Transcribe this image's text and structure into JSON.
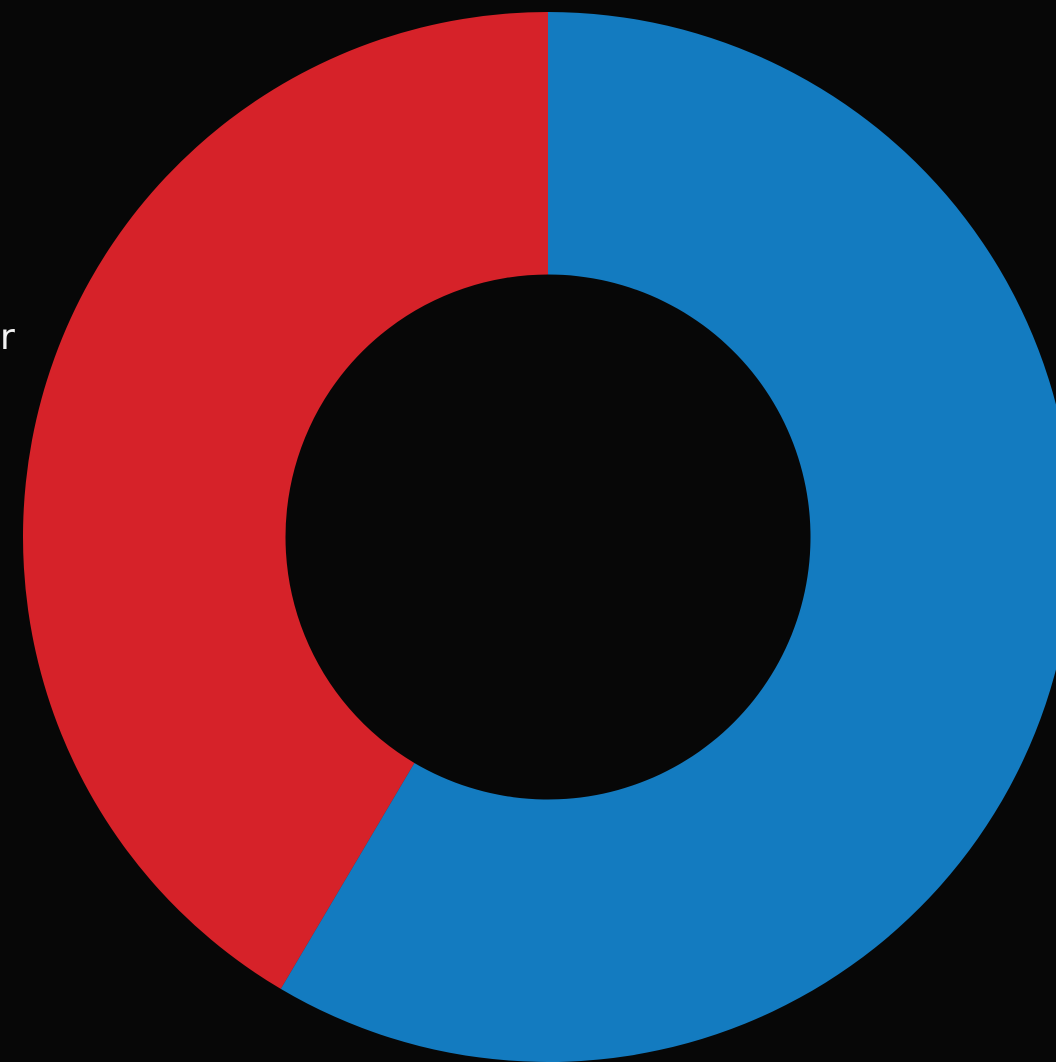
{
  "chart_data": {
    "type": "pie",
    "variant": "donut",
    "inner_radius_ratio": 0.5,
    "start_angle_deg": 0,
    "direction": "clockwise",
    "background": "#070707",
    "slices": [
      {
        "value": 58.5,
        "color": "#137bc0"
      },
      {
        "value": 41.5,
        "color": "#d62229"
      }
    ],
    "annotations": [
      {
        "text": "r",
        "clipped": true
      }
    ]
  }
}
